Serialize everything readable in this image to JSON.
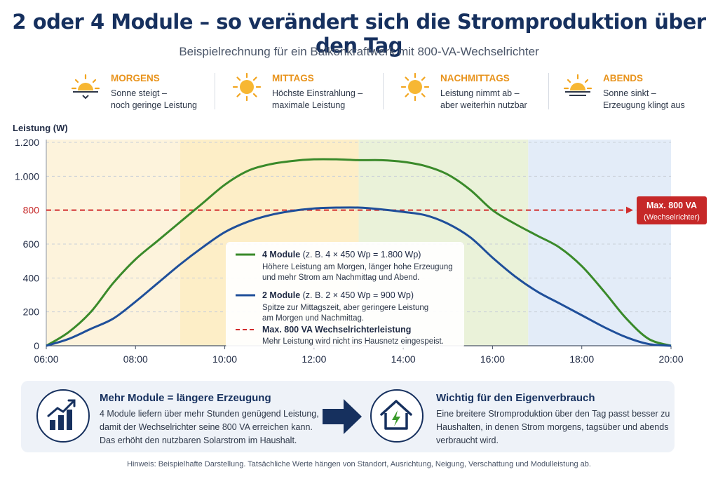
{
  "title": "2 oder 4 Module – so verändert sich die Stromproduktion über den Tag",
  "subtitle": "Beispielrechnung für ein Balkonkraftwerk mit 800-VA-Wechselrichter",
  "phases": [
    {
      "icon": "sunrise-icon",
      "title": "MORGENS",
      "line1": "Sonne steigt –",
      "line2": "noch geringe Leistung"
    },
    {
      "icon": "sun-icon",
      "title": "MITTAGS",
      "line1": "Höchste Einstrahlung –",
      "line2": "maximale Leistung"
    },
    {
      "icon": "sun-icon",
      "title": "NACHMITTAGS",
      "line1": "Leistung nimmt ab –",
      "line2": "aber weiterhin nutzbar"
    },
    {
      "icon": "sunset-icon",
      "title": "ABENDS",
      "line1": "Sonne sinkt –",
      "line2": "Erzeugung klingt aus"
    }
  ],
  "chart_data": {
    "type": "line",
    "ylabel": "Leistung (W)",
    "ylim": [
      0,
      1200
    ],
    "xlim": [
      6,
      20
    ],
    "yticks": [
      {
        "value": 0,
        "label": "0"
      },
      {
        "value": 200,
        "label": "200"
      },
      {
        "value": 400,
        "label": "400"
      },
      {
        "value": 600,
        "label": "600"
      },
      {
        "value": 800,
        "label": "800"
      },
      {
        "value": 1000,
        "label": "1.000"
      },
      {
        "value": 1200,
        "label": "1.200"
      }
    ],
    "xticks": [
      {
        "value": 6,
        "label": "06:00"
      },
      {
        "value": 8,
        "label": "08:00"
      },
      {
        "value": 10,
        "label": "10:00"
      },
      {
        "value": 12,
        "label": "12:00"
      },
      {
        "value": 14,
        "label": "14:00"
      },
      {
        "value": 16,
        "label": "16:00"
      },
      {
        "value": 18,
        "label": "18:00"
      },
      {
        "value": 20,
        "label": "20:00"
      }
    ],
    "grid": true,
    "bands": [
      {
        "from": 6,
        "to": 9,
        "color": "#fdf3dc"
      },
      {
        "from": 9,
        "to": 13,
        "color": "#fdeec7"
      },
      {
        "from": 13,
        "to": 16.8,
        "color": "#eaf2d9"
      },
      {
        "from": 16.8,
        "to": 20,
        "color": "#e3ecf8"
      }
    ],
    "series": [
      {
        "name": "4 Module",
        "color": "#3a8a2a",
        "x": [
          6,
          6.5,
          7,
          7.5,
          8,
          8.5,
          9,
          9.5,
          10,
          10.5,
          11,
          11.5,
          12,
          12.5,
          13,
          13.5,
          14,
          14.5,
          15,
          15.5,
          16,
          16.5,
          17,
          17.5,
          18,
          18.5,
          19,
          19.5,
          20
        ],
        "y": [
          0,
          80,
          200,
          370,
          510,
          620,
          730,
          840,
          950,
          1030,
          1070,
          1090,
          1100,
          1100,
          1095,
          1095,
          1085,
          1060,
          1010,
          920,
          800,
          720,
          650,
          580,
          470,
          320,
          160,
          40,
          0
        ]
      },
      {
        "name": "2 Module",
        "color": "#1f4f9a",
        "x": [
          6,
          6.5,
          7,
          7.5,
          8,
          8.5,
          9,
          9.5,
          10,
          10.5,
          11,
          11.5,
          12,
          12.5,
          13,
          13.5,
          14,
          14.5,
          15,
          15.5,
          16,
          16.5,
          17,
          17.5,
          18,
          18.5,
          19,
          19.5,
          20
        ],
        "y": [
          0,
          40,
          100,
          160,
          260,
          370,
          480,
          580,
          670,
          730,
          770,
          795,
          810,
          815,
          815,
          805,
          790,
          770,
          720,
          640,
          520,
          410,
          320,
          250,
          180,
          110,
          50,
          10,
          0
        ]
      }
    ],
    "threshold": {
      "value": 800,
      "color": "#d22c2c",
      "label1": "Max. 800 VA",
      "label2": "(Wechselrichter)"
    }
  },
  "legend": [
    {
      "name": "4 Module",
      "detail": " (z. B. 4 × 450 Wp  = 1.800 Wp)",
      "line1": "Höhere Leistung am Morgen, länger hohe Erzeugung",
      "line2": "und mehr Strom am Nachmittag und Abend.",
      "color": "#3a8a2a",
      "dashed": false
    },
    {
      "name": "2 Module",
      "detail": " (z. B. 2 × 450 Wp = 900 Wp)",
      "line1": "Spitze zur Mittagszeit, aber geringere Leistung",
      "line2": "am Morgen und Nachmittag.",
      "color": "#1f4f9a",
      "dashed": false
    },
    {
      "name": "Max. 800 VA Wechselrichterleistung",
      "detail": "",
      "line1": "Mehr Leistung wird nicht ins Hausnetz eingespeist.",
      "line2": "",
      "color": "#d22c2c",
      "dashed": true
    }
  ],
  "info_left": {
    "icon": "bar-chart-growth-icon",
    "title": "Mehr Module = längere Erzeugung",
    "lines": [
      "4 Module liefern über mehr Stunden genügend Leistung,",
      "damit der Wechselrichter seine 800 VA erreichen kann.",
      "Das erhöht den nutzbaren Solarstrom im Haushalt."
    ]
  },
  "info_right": {
    "icon": "house-lightning-icon",
    "title": "Wichtig für den Eigenverbrauch",
    "lines": [
      "Eine breitere Stromproduktion über den Tag passt besser zu",
      "Haushalten, in denen Strom morgens, tagsüber und abends",
      "verbraucht wird."
    ]
  },
  "footnote": "Hinweis: Beispielhafte Darstellung. Tatsächliche Werte hängen von Standort, Ausrichtung, Neigung, Verschattung und Modulleistung ab."
}
